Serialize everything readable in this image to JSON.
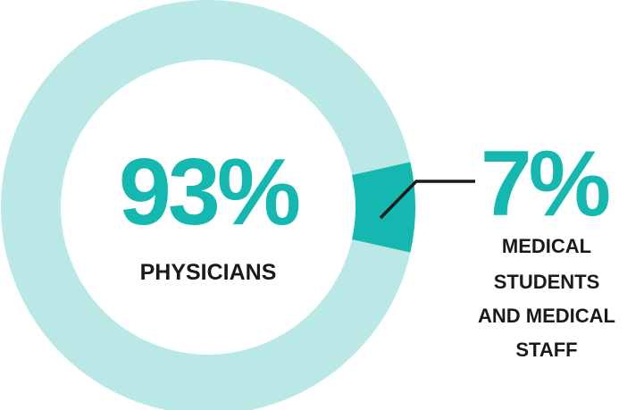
{
  "chart_data": {
    "type": "pie",
    "categories": [
      "PHYSICIANS",
      "MEDICAL STUDENTS AND MEDICAL STAFF"
    ],
    "values": [
      93,
      7
    ],
    "labels": {
      "primary_value": "93%",
      "primary_name": "PHYSICIANS",
      "secondary_value": "7%",
      "secondary_name_lines": [
        "MEDICAL",
        "STUDENTS",
        "AND MEDICAL",
        "STAFF"
      ]
    },
    "colors": {
      "primary": "#B9E8E6",
      "secondary": "#14B8B0",
      "text_accent": "#14B8B0",
      "text_dark": "#1A1A1A",
      "leader": "#1A1A1A"
    }
  }
}
